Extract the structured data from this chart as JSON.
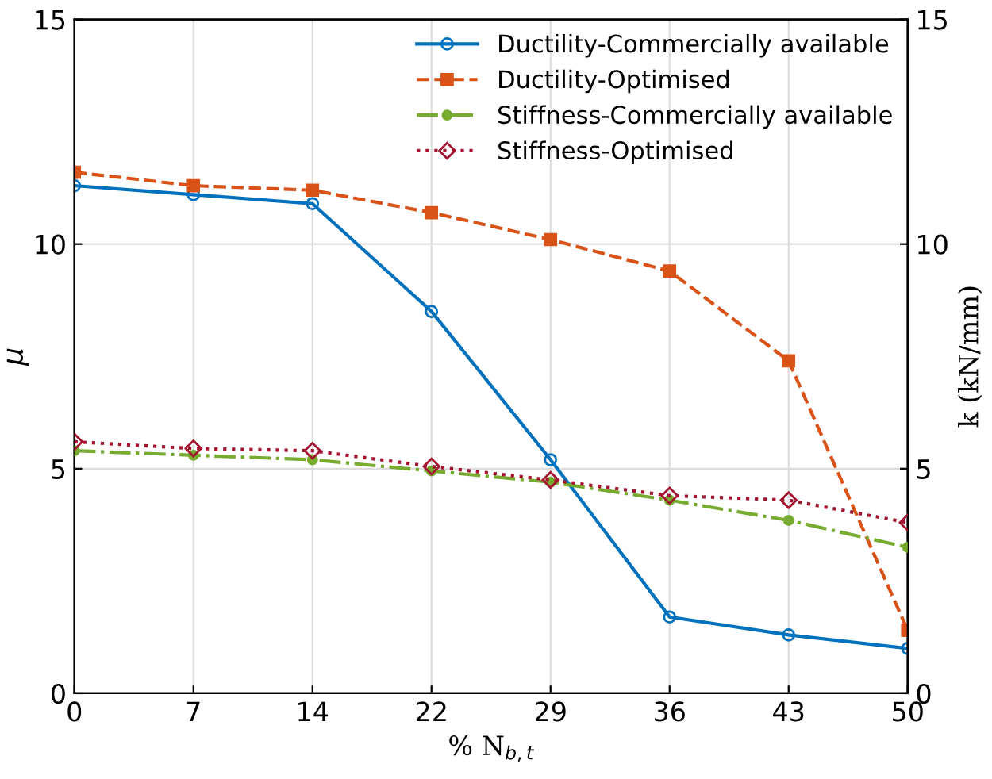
{
  "chart_data": {
    "type": "line",
    "xlabel": "% N$_{b,t}$",
    "ylabel": "μ",
    "y2label": "k (kN/mm)",
    "categories": [
      "0",
      "7",
      "14",
      "22",
      "29",
      "36",
      "43",
      "50"
    ],
    "series": [
      {
        "name": "Ductility-Commercially available",
        "color": "#0072bd",
        "marker": "circle",
        "line_style": "solid",
        "values": [
          11.3,
          11.1,
          10.9,
          8.5,
          5.2,
          1.7,
          1.3,
          1.0
        ]
      },
      {
        "name": "Ductility-Optimised",
        "color": "#d95319",
        "marker": "square",
        "line_style": "dashed",
        "values": [
          11.6,
          11.3,
          11.2,
          10.7,
          10.1,
          9.4,
          7.4,
          1.4
        ]
      },
      {
        "name": "Stiffness-Commercially available",
        "color": "#77ac30",
        "marker": "circle",
        "line_style": "dashdot",
        "axis": "y2",
        "values": [
          5.4,
          5.3,
          5.2,
          4.95,
          4.7,
          4.3,
          3.85,
          3.25
        ]
      },
      {
        "name": "Stiffness-Optimised",
        "color": "#a2142f",
        "marker": "diamond",
        "line_style": "dotted",
        "axis": "y2",
        "values": [
          5.6,
          5.45,
          5.4,
          5.05,
          4.75,
          4.4,
          4.3,
          3.8
        ]
      }
    ],
    "ylim": [
      0,
      15
    ],
    "yticks": [
      0,
      5,
      10,
      15
    ],
    "y2lim": [
      0,
      15
    ],
    "y2ticks": [
      0,
      5,
      10,
      15
    ],
    "grid": true,
    "legend": "top right"
  }
}
